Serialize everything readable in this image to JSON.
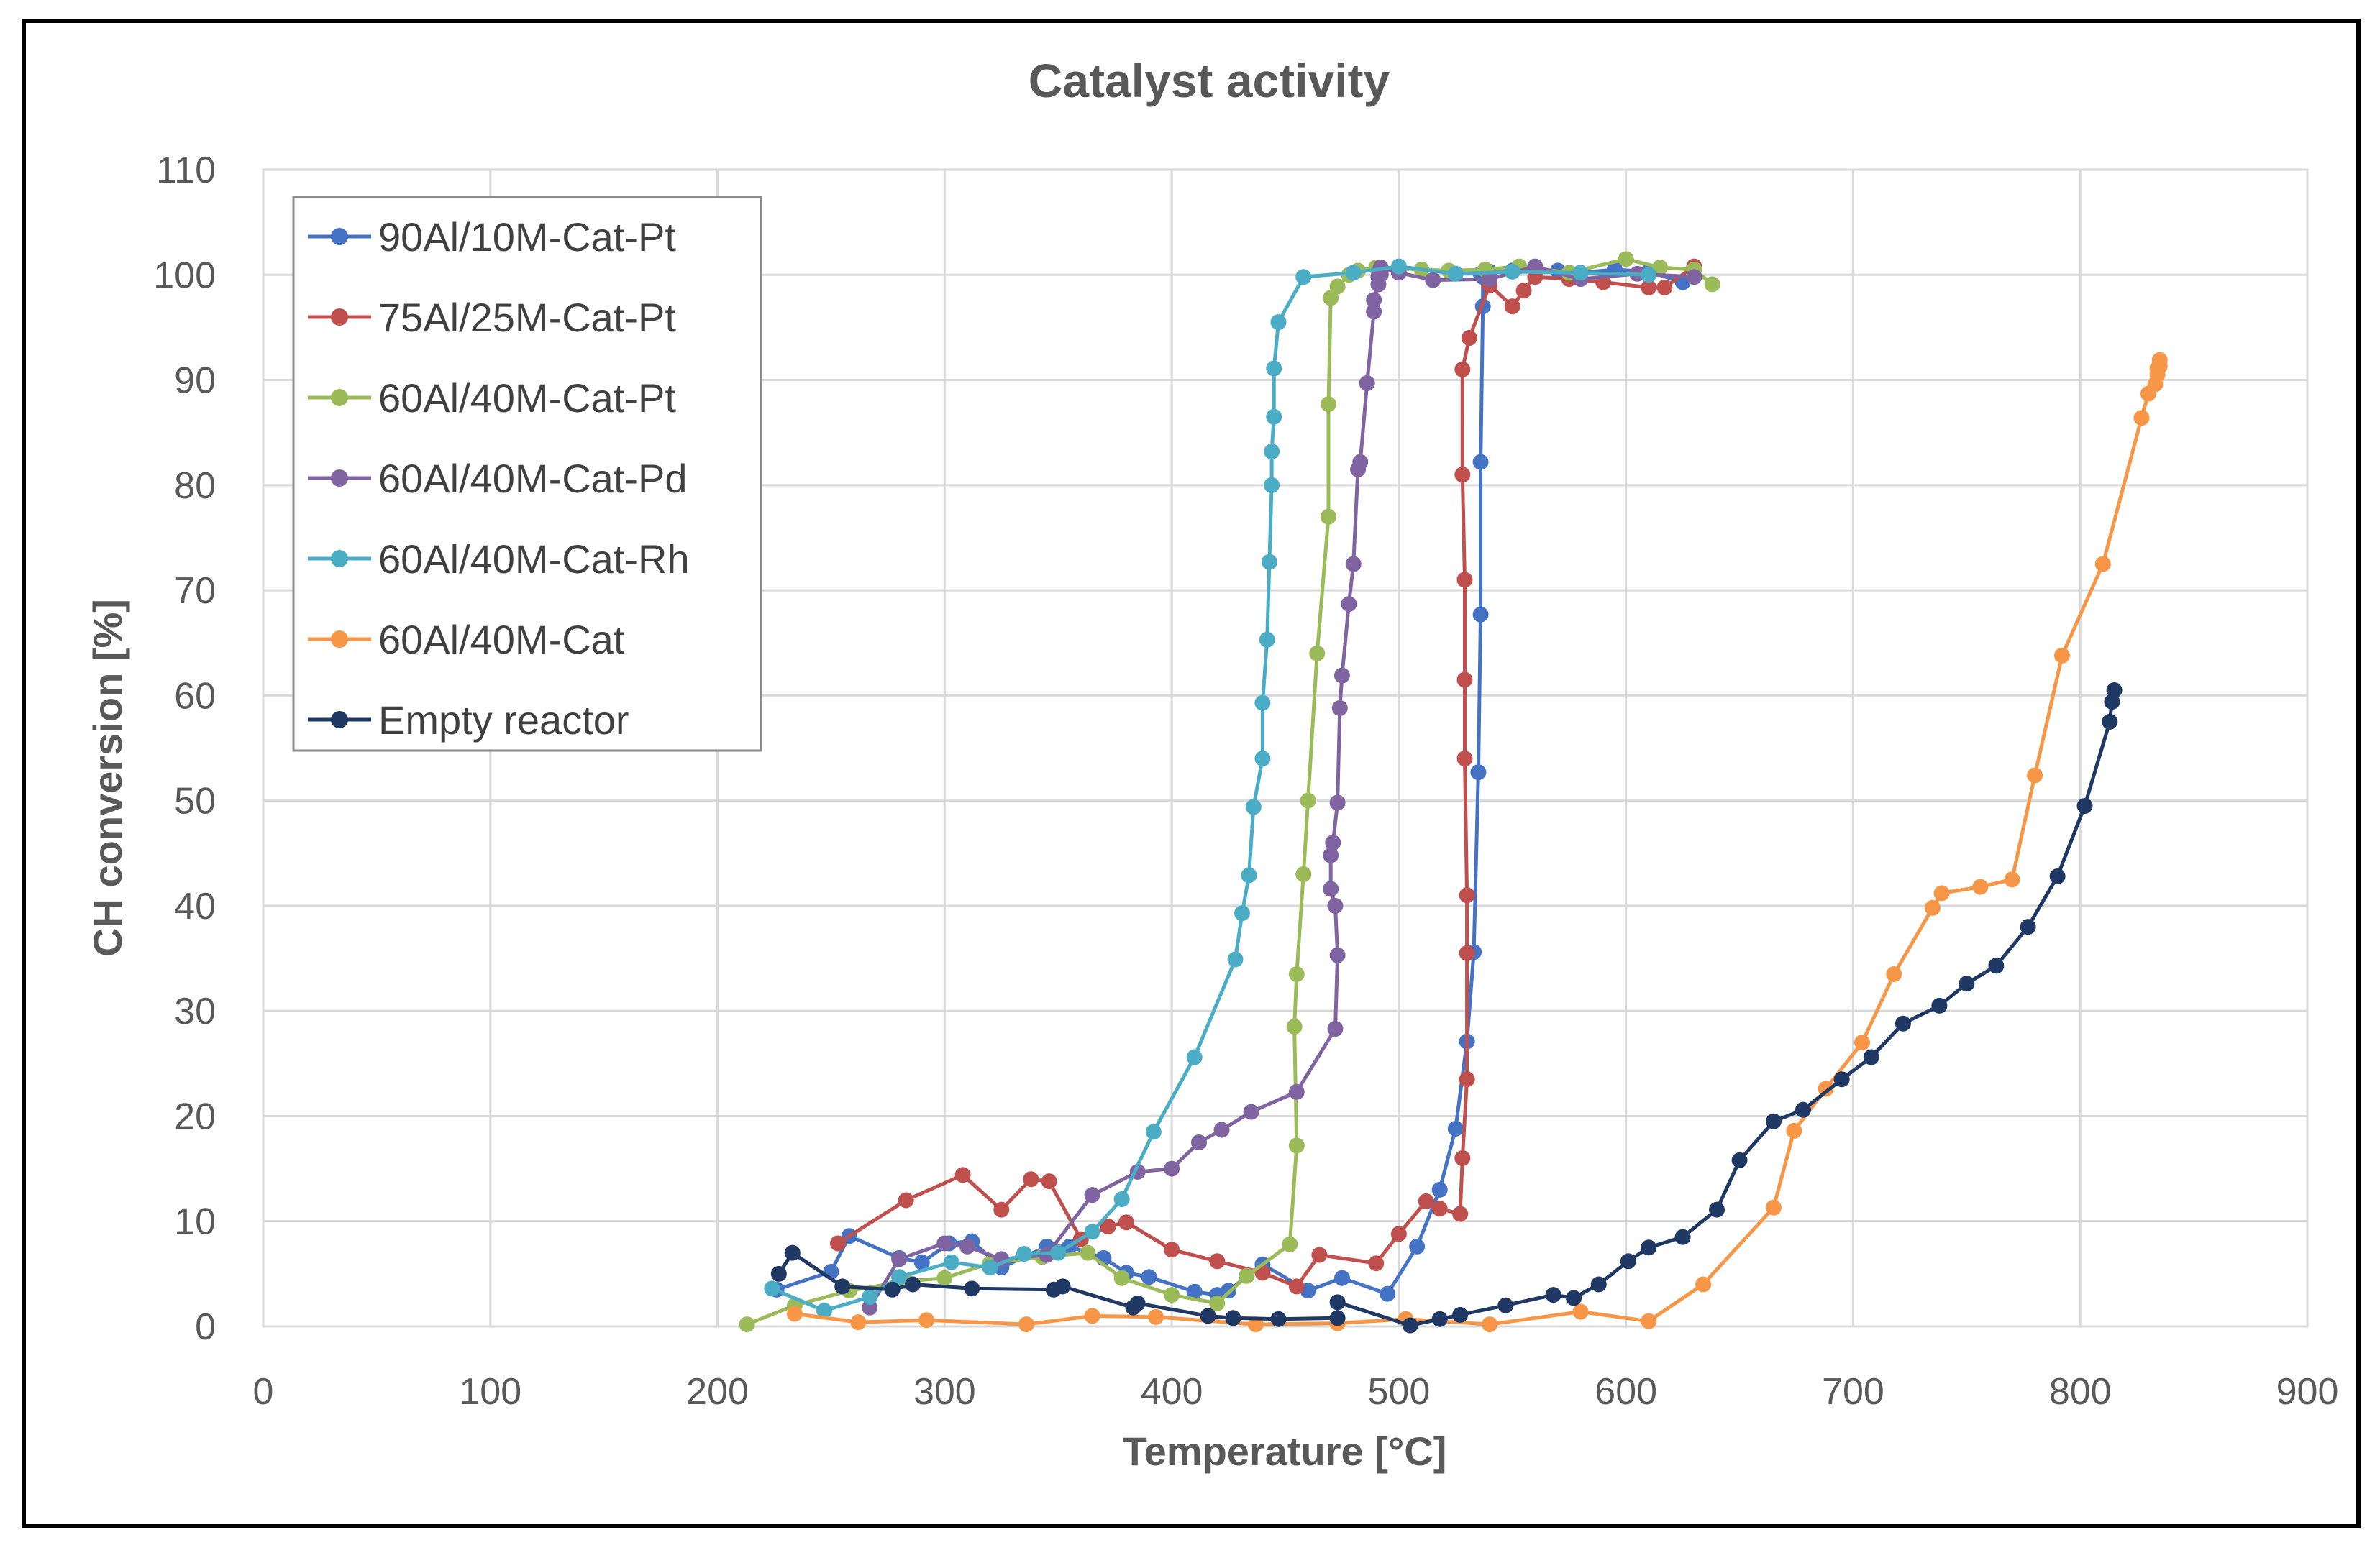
{
  "chart_data": {
    "type": "scatter",
    "title": "Catalyst activity",
    "xlabel": "Temperature [°C]",
    "ylabel": "CH conversion [%]",
    "xlim": [
      0,
      900
    ],
    "ylim": [
      0,
      110
    ],
    "xticks": [
      0,
      100,
      200,
      300,
      400,
      500,
      600,
      700,
      800,
      900
    ],
    "yticks": [
      0,
      10,
      20,
      30,
      40,
      50,
      60,
      70,
      80,
      90,
      100,
      110
    ],
    "grid": true,
    "legend_position": "top-left",
    "series": [
      {
        "name": "90Al/10M-Cat-Pt",
        "color": "#4472C4",
        "x": [
          226,
          250,
          258,
          280,
          290,
          302,
          312,
          325,
          345,
          355,
          370,
          380,
          390,
          410,
          420,
          425,
          440,
          460,
          475,
          495,
          508,
          518,
          525,
          530,
          533,
          535,
          536,
          536,
          537,
          537,
          537,
          536,
          540,
          550,
          560,
          570,
          580,
          595,
          610,
          625
        ],
        "y": [
          3.5,
          5.2,
          8.6,
          6.5,
          6.1,
          7.9,
          8.1,
          5.6,
          7.6,
          7.6,
          6.5,
          5.1,
          4.7,
          3.3,
          3.0,
          3.4,
          5.9,
          3.4,
          4.6,
          3.1,
          7.6,
          13.0,
          18.8,
          27.1,
          35.6,
          52.7,
          67.7,
          82.2,
          97.0,
          100.0,
          99.8,
          100.1,
          100.3,
          100.4,
          100.3,
          100.4,
          100.2,
          100.5,
          100.3,
          99.3
        ]
      },
      {
        "name": "75Al/25M-Cat-Pt",
        "color": "#C0504D",
        "x": [
          253,
          283,
          308,
          325,
          338,
          346,
          360,
          372,
          380,
          400,
          420,
          440,
          455,
          465,
          490,
          500,
          512,
          518,
          527,
          528,
          530,
          530,
          530,
          529,
          529,
          529,
          528,
          528,
          531,
          540,
          550,
          555,
          560,
          575,
          590,
          610,
          617,
          630
        ],
        "y": [
          7.9,
          12.0,
          14.4,
          11.1,
          14.0,
          13.8,
          8.3,
          9.5,
          9.9,
          7.3,
          6.2,
          5.1,
          3.8,
          6.8,
          6.0,
          8.8,
          11.9,
          11.2,
          10.7,
          16.0,
          23.5,
          35.5,
          41.0,
          54.0,
          61.5,
          71.0,
          81.0,
          91.0,
          94.0,
          99.0,
          97.0,
          98.5,
          99.8,
          99.6,
          99.3,
          98.8,
          98.8,
          100.8
        ]
      },
      {
        "name": "60Al/40M-Cat-Pt",
        "color": "#9BBB59",
        "x": [
          213,
          234,
          258,
          283,
          300,
          320,
          343,
          363,
          378,
          400,
          420,
          433,
          452,
          455,
          454,
          455,
          458,
          460,
          464,
          469,
          469,
          470,
          473,
          478,
          482,
          490,
          500,
          510,
          522,
          538,
          553,
          575,
          600,
          615,
          630,
          638
        ],
        "y": [
          0.2,
          2.0,
          3.4,
          4.3,
          4.6,
          6.0,
          6.6,
          7.0,
          4.6,
          3.0,
          2.2,
          4.8,
          7.8,
          17.2,
          28.5,
          33.5,
          43.0,
          50.0,
          64.0,
          77.0,
          87.7,
          97.8,
          98.9,
          100.0,
          100.4,
          100.7,
          100.6,
          100.5,
          100.4,
          100.5,
          100.8,
          100.2,
          101.5,
          100.7,
          100.5,
          99.1
        ]
      },
      {
        "name": "60Al/40M-Cat-Pd",
        "color": "#8064A2",
        "x": [
          267,
          280,
          300,
          310,
          325,
          345,
          365,
          385,
          400,
          412,
          422,
          435,
          455,
          472,
          473,
          472,
          470,
          470,
          471,
          473,
          474,
          475,
          478,
          480,
          482,
          483,
          486,
          489,
          489,
          491,
          491,
          492,
          492,
          492,
          492,
          492,
          500,
          515,
          540,
          560,
          580,
          605,
          630
        ],
        "y": [
          1.8,
          6.4,
          7.9,
          7.6,
          6.4,
          6.8,
          12.5,
          14.7,
          15.0,
          17.5,
          18.7,
          20.4,
          22.3,
          28.3,
          35.3,
          40.0,
          41.6,
          44.8,
          46.0,
          49.8,
          58.8,
          61.9,
          68.7,
          72.5,
          81.5,
          82.2,
          89.7,
          96.5,
          97.6,
          99.1,
          99.8,
          100.0,
          100.1,
          100.3,
          100.7,
          100.6,
          100.2,
          99.5,
          99.6,
          100.8,
          99.6,
          100.1,
          99.8
        ]
      },
      {
        "name": "60Al/40M-Cat-Rh",
        "color": "#4BACC6",
        "x": [
          224,
          247,
          267,
          280,
          303,
          320,
          335,
          350,
          365,
          378,
          392,
          410,
          428,
          431,
          434,
          436,
          440,
          440,
          442,
          443,
          444,
          444,
          445,
          445,
          447,
          458,
          480,
          500,
          525,
          550,
          580,
          610
        ],
        "y": [
          3.6,
          1.5,
          2.8,
          4.7,
          6.1,
          5.6,
          6.9,
          7.0,
          9.0,
          12.1,
          18.5,
          25.6,
          34.9,
          39.3,
          42.9,
          49.4,
          54.0,
          59.3,
          65.3,
          72.7,
          80.0,
          83.2,
          86.5,
          91.1,
          95.5,
          99.8,
          100.2,
          100.8,
          100.1,
          100.3,
          100.2,
          100.0
        ]
      },
      {
        "name": "60Al/40M-Cat",
        "color": "#F79646",
        "x": [
          234,
          262,
          292,
          336,
          365,
          393,
          437,
          473,
          503,
          540,
          580,
          610,
          634,
          665,
          674,
          688,
          704,
          718,
          735,
          739,
          756,
          770,
          780,
          792,
          810,
          827,
          830,
          833,
          834,
          834,
          835,
          835
        ],
        "y": [
          1.2,
          0.4,
          0.6,
          0.2,
          1.0,
          0.9,
          0.2,
          0.3,
          0.7,
          0.2,
          1.4,
          0.5,
          4.0,
          11.3,
          18.6,
          22.6,
          27.0,
          33.5,
          39.8,
          41.2,
          41.8,
          42.5,
          52.4,
          63.8,
          72.5,
          86.4,
          88.7,
          89.6,
          90.5,
          91.1,
          91.3,
          91.9
        ]
      },
      {
        "name": "Empty reactor",
        "color": "#1F3864",
        "x": [
          227,
          233,
          255,
          277,
          286,
          312,
          348,
          352,
          383,
          385,
          416,
          427,
          447,
          473,
          473,
          505,
          518,
          527,
          547,
          568,
          577,
          588,
          601,
          610,
          625,
          640,
          650,
          665,
          678,
          695,
          708,
          722,
          738,
          750,
          763,
          777,
          790,
          802,
          813,
          814,
          815
        ],
        "y": [
          5.0,
          7.0,
          3.8,
          3.5,
          4.0,
          3.6,
          3.5,
          3.8,
          1.8,
          2.2,
          1.0,
          0.8,
          0.7,
          0.8,
          2.3,
          0.1,
          0.7,
          1.1,
          2.0,
          3.0,
          2.7,
          4.0,
          6.2,
          7.5,
          8.5,
          11.1,
          15.8,
          19.5,
          20.6,
          23.5,
          25.6,
          28.8,
          30.5,
          32.6,
          34.3,
          38.0,
          42.8,
          49.5,
          57.5,
          59.4,
          60.5
        ]
      }
    ]
  }
}
